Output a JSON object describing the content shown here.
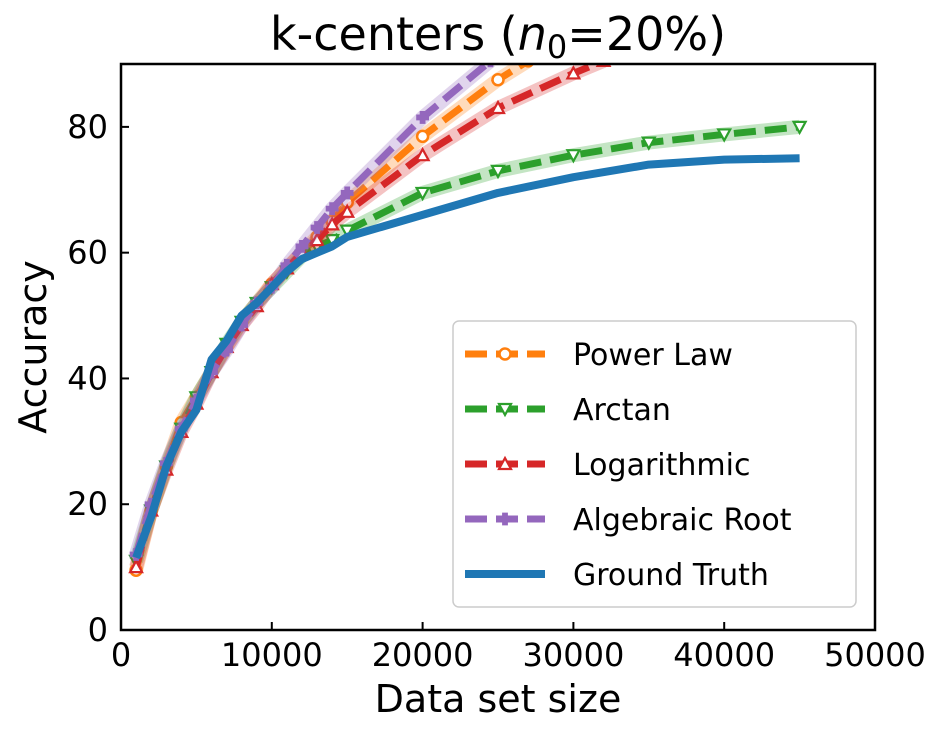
{
  "chart_data": {
    "type": "line",
    "title_prefix": "k-centers (",
    "title_var": "n",
    "title_sub": "0",
    "title_suffix": "=20%)",
    "xlabel": "Data set size",
    "ylabel": "Accuracy",
    "xlim": [
      0,
      50000
    ],
    "ylim": [
      0,
      90
    ],
    "xticks": [
      "0",
      "10000",
      "20000",
      "30000",
      "40000",
      "50000"
    ],
    "yticks": [
      "0",
      "20",
      "40",
      "60",
      "80"
    ],
    "xtick_values": [
      0,
      10000,
      20000,
      30000,
      40000,
      50000
    ],
    "ytick_values": [
      0,
      20,
      40,
      60,
      80
    ],
    "legend_position": "lower-right",
    "series": [
      {
        "name": "Ground Truth",
        "color": "#1f77b4",
        "style": "solid",
        "marker": "none",
        "x": [
          1000,
          2000,
          3000,
          4000,
          5000,
          6000,
          7000,
          8000,
          9000,
          10000,
          11000,
          12000,
          13000,
          14000,
          15000,
          20000,
          25000,
          30000,
          35000,
          40000,
          45000
        ],
        "y": [
          11.5,
          18,
          26,
          31.5,
          35,
          43,
          46,
          50,
          52,
          54.5,
          57,
          59,
          60,
          61,
          62.5,
          66,
          69.5,
          72,
          74,
          74.8,
          75
        ]
      },
      {
        "name": "Power Law",
        "color": "#ff7f0e",
        "style": "dashed",
        "marker": "circle",
        "x": [
          1000,
          2000,
          3000,
          4000,
          5000,
          6000,
          7000,
          8000,
          9000,
          10000,
          11000,
          12000,
          13000,
          14000,
          15000,
          20000,
          25000,
          27000
        ],
        "y": [
          9.5,
          19,
          26,
          33,
          37,
          41,
          45,
          49,
          52,
          55,
          57.5,
          60,
          62.5,
          65,
          68,
          78.5,
          87.5,
          90.5
        ]
      },
      {
        "name": "Arctan",
        "color": "#2ca02c",
        "style": "dashed",
        "marker": "triangle_down",
        "x": [
          1000,
          2000,
          3000,
          4000,
          5000,
          6000,
          7000,
          8000,
          9000,
          10000,
          11000,
          12000,
          13000,
          14000,
          15000,
          20000,
          25000,
          30000,
          35000,
          40000,
          45000
        ],
        "y": [
          11,
          19,
          26,
          32,
          37,
          41,
          45.5,
          49,
          52,
          54.5,
          57,
          59.5,
          61,
          62,
          63.5,
          69.5,
          73,
          75.5,
          77.5,
          78.8,
          80
        ]
      },
      {
        "name": "Logarithmic",
        "color": "#d62728",
        "style": "dashed",
        "marker": "triangle_up",
        "x": [
          1000,
          2000,
          3000,
          4000,
          5000,
          6000,
          7000,
          8000,
          9000,
          10000,
          11000,
          12000,
          13000,
          14000,
          15000,
          20000,
          25000,
          30000,
          32000
        ],
        "y": [
          10,
          19,
          25.5,
          31.5,
          36,
          41,
          45,
          48.5,
          51.5,
          55,
          57.5,
          60,
          62,
          64.5,
          66.5,
          75.5,
          83,
          88.5,
          90.5
        ]
      },
      {
        "name": "Algebraic Root",
        "color": "#9467bd",
        "style": "dashed",
        "marker": "plus_filled",
        "x": [
          1000,
          2000,
          3000,
          4000,
          5000,
          6000,
          7000,
          8000,
          9000,
          10000,
          11000,
          12000,
          13000,
          14000,
          15000,
          20000,
          24500
        ],
        "y": [
          12,
          20,
          26.5,
          32,
          36.5,
          41,
          44.5,
          48.5,
          52,
          54.5,
          58,
          61,
          64,
          67,
          69.5,
          81.5,
          90.5
        ]
      }
    ],
    "legend_order": [
      "Power Law",
      "Arctan",
      "Logarithmic",
      "Algebraic Root",
      "Ground Truth"
    ]
  }
}
